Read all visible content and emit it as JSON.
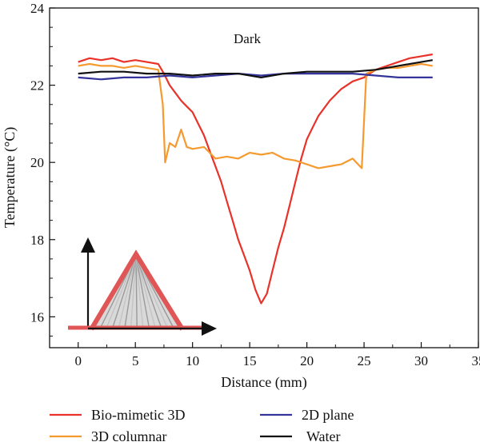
{
  "chart_data": {
    "type": "line",
    "annotation": "Dark",
    "xlabel": "Distance (mm)",
    "ylabel": "Temperature (°C)",
    "xlim": [
      -2.5,
      35
    ],
    "ylim": [
      15.2,
      24
    ],
    "xticks": [
      0,
      5,
      10,
      15,
      20,
      25,
      30,
      35
    ],
    "yticks": [
      16,
      18,
      20,
      22,
      24
    ],
    "grid": false,
    "legend_position": "bottom",
    "series": [
      {
        "name": "Bio-mimetic 3D",
        "color": "#e8322a",
        "x": [
          0,
          1,
          2,
          3,
          4,
          5,
          6,
          7,
          7.5,
          8,
          8.5,
          9,
          9.5,
          10,
          10.5,
          11,
          11.5,
          12,
          12.5,
          13,
          13.5,
          14,
          14.5,
          15,
          15.5,
          16,
          16.5,
          17,
          17.5,
          18,
          18.5,
          19,
          19.5,
          20,
          20.5,
          21,
          22,
          23,
          24,
          25,
          26,
          27,
          28,
          29,
          30,
          31
        ],
        "y": [
          22.6,
          22.7,
          22.65,
          22.7,
          22.6,
          22.65,
          22.6,
          22.55,
          22.3,
          22.0,
          21.8,
          21.6,
          21.45,
          21.3,
          21.0,
          20.7,
          20.3,
          19.9,
          19.5,
          19.0,
          18.5,
          18.0,
          17.6,
          17.2,
          16.7,
          16.35,
          16.6,
          17.2,
          17.8,
          18.3,
          18.9,
          19.5,
          20.1,
          20.6,
          20.9,
          21.2,
          21.6,
          21.9,
          22.1,
          22.2,
          22.4,
          22.5,
          22.6,
          22.7,
          22.75,
          22.8
        ]
      },
      {
        "name": "3D columnar",
        "color": "#f59a2e",
        "x": [
          0,
          1,
          2,
          3,
          4,
          5,
          6,
          7,
          7.4,
          7.6,
          8,
          8.5,
          9,
          9.5,
          10,
          11,
          12,
          13,
          14,
          15,
          16,
          17,
          18,
          19,
          20,
          21,
          22,
          23,
          24,
          24.8,
          25.2,
          25.6,
          26,
          27,
          28,
          29,
          30,
          31
        ],
        "y": [
          22.5,
          22.55,
          22.5,
          22.5,
          22.45,
          22.5,
          22.45,
          22.4,
          21.5,
          20.0,
          20.5,
          20.4,
          20.85,
          20.4,
          20.35,
          20.4,
          20.1,
          20.15,
          20.1,
          20.25,
          20.2,
          20.25,
          20.1,
          20.05,
          19.95,
          19.85,
          19.9,
          19.95,
          20.1,
          19.85,
          22.3,
          22.35,
          22.4,
          22.45,
          22.45,
          22.5,
          22.55,
          22.5
        ]
      },
      {
        "name": "2D plane",
        "color": "#34349c",
        "x": [
          0,
          2,
          4,
          6,
          8,
          10,
          12,
          14,
          16,
          18,
          20,
          22,
          24,
          26,
          28,
          30,
          31
        ],
        "y": [
          22.2,
          22.15,
          22.2,
          22.2,
          22.25,
          22.2,
          22.25,
          22.3,
          22.25,
          22.3,
          22.3,
          22.3,
          22.3,
          22.25,
          22.2,
          22.2,
          22.2
        ]
      },
      {
        "name": "Water",
        "color": "#111111",
        "x": [
          0,
          2,
          4,
          6,
          8,
          10,
          12,
          14,
          16,
          18,
          20,
          22,
          24,
          26,
          28,
          30,
          31
        ],
        "y": [
          22.3,
          22.35,
          22.35,
          22.3,
          22.3,
          22.25,
          22.3,
          22.3,
          22.2,
          22.3,
          22.35,
          22.35,
          22.35,
          22.4,
          22.5,
          22.6,
          22.65
        ]
      }
    ]
  },
  "inset_icons": {
    "axes": "arrow-axes-icon",
    "cone": "cone-structure-icon"
  }
}
